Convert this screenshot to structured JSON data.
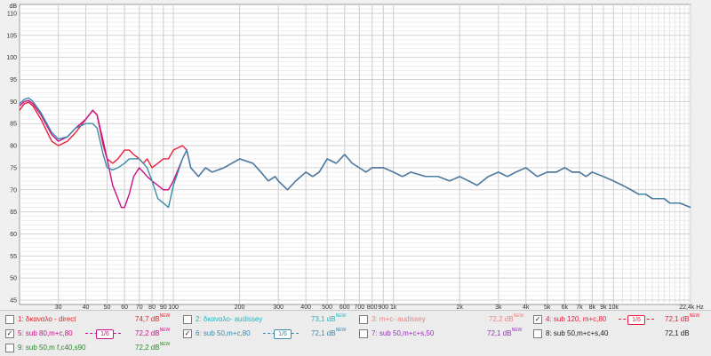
{
  "graph": {
    "y_unit": "dB",
    "x_unit": "Hz",
    "y_ticks": [
      "45",
      "50",
      "55",
      "60",
      "65",
      "70",
      "75",
      "80",
      "85",
      "90",
      "95",
      "100",
      "105",
      "110"
    ],
    "x_ticks": [
      {
        "f": 30,
        "label": "30"
      },
      {
        "f": 40,
        "label": "40"
      },
      {
        "f": 50,
        "label": "50"
      },
      {
        "f": 60,
        "label": "60"
      },
      {
        "f": 70,
        "label": "70"
      },
      {
        "f": 80,
        "label": "80"
      },
      {
        "f": 90,
        "label": "90"
      },
      {
        "f": 100,
        "label": "100"
      },
      {
        "f": 200,
        "label": "200"
      },
      {
        "f": 300,
        "label": "300"
      },
      {
        "f": 400,
        "label": "400"
      },
      {
        "f": 500,
        "label": "500"
      },
      {
        "f": 600,
        "label": "600"
      },
      {
        "f": 700,
        "label": "700"
      },
      {
        "f": 800,
        "label": "800"
      },
      {
        "f": 900,
        "label": "900"
      },
      {
        "f": 1000,
        "label": "1k"
      },
      {
        "f": 2000,
        "label": "2k"
      },
      {
        "f": 3000,
        "label": "3k"
      },
      {
        "f": 4000,
        "label": "4k"
      },
      {
        "f": 5000,
        "label": "5k"
      },
      {
        "f": 6000,
        "label": "6k"
      },
      {
        "f": 7000,
        "label": "7k"
      },
      {
        "f": 8000,
        "label": "8k"
      },
      {
        "f": 9000,
        "label": "9k"
      },
      {
        "f": 10000,
        "label": "10k"
      },
      {
        "f": 22400,
        "label": "22,4k Hz"
      }
    ],
    "x_range": [
      20,
      22400
    ],
    "y_range": [
      44,
      112
    ],
    "grid": true
  },
  "chart_data": {
    "type": "line",
    "xlabel": "Hz",
    "ylabel": "dB",
    "x_scale": "log",
    "xlim": [
      20,
      22400
    ],
    "ylim": [
      44,
      112
    ],
    "series": [
      {
        "name": "4: sub 120, m+c,80",
        "color": "#e8203c",
        "points": [
          [
            20,
            88
          ],
          [
            21,
            89.5
          ],
          [
            22,
            89.8
          ],
          [
            23,
            89
          ],
          [
            25,
            86
          ],
          [
            28,
            81
          ],
          [
            30,
            80
          ],
          [
            33,
            81
          ],
          [
            36,
            83
          ],
          [
            40,
            86
          ],
          [
            43,
            88
          ],
          [
            45,
            87
          ],
          [
            48,
            80
          ],
          [
            50,
            77
          ],
          [
            53,
            76
          ],
          [
            56,
            77
          ],
          [
            60,
            79
          ],
          [
            63,
            79
          ],
          [
            66,
            78
          ],
          [
            70,
            77
          ],
          [
            73,
            76
          ],
          [
            76,
            77
          ],
          [
            80,
            75
          ],
          [
            85,
            76
          ],
          [
            90,
            77
          ],
          [
            95,
            77
          ],
          [
            100,
            79
          ],
          [
            110,
            80
          ],
          [
            115,
            79
          ],
          [
            120,
            75
          ],
          [
            130,
            73
          ],
          [
            140,
            75
          ],
          [
            150,
            74
          ],
          [
            170,
            75
          ],
          [
            200,
            77
          ],
          [
            230,
            76
          ],
          [
            250,
            74
          ],
          [
            270,
            72
          ],
          [
            290,
            73
          ],
          [
            300,
            72
          ],
          [
            330,
            70
          ],
          [
            360,
            72
          ],
          [
            400,
            74
          ],
          [
            430,
            73
          ],
          [
            460,
            74
          ],
          [
            500,
            77
          ],
          [
            550,
            76
          ],
          [
            600,
            78
          ],
          [
            650,
            76
          ],
          [
            700,
            75
          ],
          [
            750,
            74
          ],
          [
            800,
            75
          ],
          [
            900,
            75
          ],
          [
            1000,
            74
          ],
          [
            1100,
            73
          ],
          [
            1200,
            74
          ],
          [
            1400,
            73
          ],
          [
            1600,
            73
          ],
          [
            1800,
            72
          ],
          [
            2000,
            73
          ],
          [
            2200,
            72
          ],
          [
            2400,
            71
          ],
          [
            2700,
            73
          ],
          [
            3000,
            74
          ],
          [
            3300,
            73
          ],
          [
            3600,
            74
          ],
          [
            4000,
            75
          ],
          [
            4500,
            73
          ],
          [
            5000,
            74
          ],
          [
            5500,
            74
          ],
          [
            6000,
            75
          ],
          [
            6500,
            74
          ],
          [
            7000,
            74
          ],
          [
            7500,
            73
          ],
          [
            8000,
            74
          ],
          [
            9000,
            73
          ],
          [
            10000,
            72
          ],
          [
            11000,
            71
          ],
          [
            12000,
            70
          ],
          [
            13000,
            69
          ],
          [
            14000,
            69
          ],
          [
            15000,
            68
          ],
          [
            16000,
            68
          ],
          [
            17000,
            68
          ],
          [
            18000,
            67
          ],
          [
            20000,
            67
          ],
          [
            22400,
            66
          ]
        ]
      },
      {
        "name": "5: sub 80,m+c,80",
        "color": "#cc1188",
        "points": [
          [
            20,
            89
          ],
          [
            21,
            90
          ],
          [
            22,
            90.2
          ],
          [
            23,
            89.5
          ],
          [
            25,
            87
          ],
          [
            28,
            82.5
          ],
          [
            30,
            81
          ],
          [
            33,
            82
          ],
          [
            36,
            84
          ],
          [
            40,
            86
          ],
          [
            43,
            88
          ],
          [
            45,
            87
          ],
          [
            48,
            81
          ],
          [
            50,
            77
          ],
          [
            53,
            71
          ],
          [
            56,
            68
          ],
          [
            58,
            66
          ],
          [
            60,
            66
          ],
          [
            63,
            69
          ],
          [
            66,
            73
          ],
          [
            70,
            75
          ],
          [
            73,
            74
          ],
          [
            76,
            73
          ],
          [
            80,
            72
          ],
          [
            85,
            71
          ],
          [
            90,
            70
          ],
          [
            95,
            70
          ],
          [
            100,
            72
          ],
          [
            110,
            77
          ],
          [
            115,
            79
          ],
          [
            120,
            75
          ],
          [
            130,
            73
          ],
          [
            140,
            75
          ],
          [
            150,
            74
          ],
          [
            170,
            75
          ],
          [
            200,
            77
          ],
          [
            230,
            76
          ],
          [
            250,
            74
          ],
          [
            270,
            72
          ],
          [
            290,
            73
          ],
          [
            300,
            72
          ],
          [
            330,
            70
          ],
          [
            360,
            72
          ],
          [
            400,
            74
          ],
          [
            430,
            73
          ],
          [
            460,
            74
          ],
          [
            500,
            77
          ],
          [
            550,
            76
          ],
          [
            600,
            78
          ],
          [
            650,
            76
          ],
          [
            700,
            75
          ],
          [
            750,
            74
          ],
          [
            800,
            75
          ],
          [
            900,
            75
          ],
          [
            1000,
            74
          ],
          [
            1100,
            73
          ],
          [
            1200,
            74
          ],
          [
            1400,
            73
          ],
          [
            1600,
            73
          ],
          [
            1800,
            72
          ],
          [
            2000,
            73
          ],
          [
            2200,
            72
          ],
          [
            2400,
            71
          ],
          [
            2700,
            73
          ],
          [
            3000,
            74
          ],
          [
            3300,
            73
          ],
          [
            3600,
            74
          ],
          [
            4000,
            75
          ],
          [
            4500,
            73
          ],
          [
            5000,
            74
          ],
          [
            5500,
            74
          ],
          [
            6000,
            75
          ],
          [
            6500,
            74
          ],
          [
            7000,
            74
          ],
          [
            7500,
            73
          ],
          [
            8000,
            74
          ],
          [
            9000,
            73
          ],
          [
            10000,
            72
          ],
          [
            11000,
            71
          ],
          [
            12000,
            70
          ],
          [
            13000,
            69
          ],
          [
            14000,
            69
          ],
          [
            15000,
            68
          ],
          [
            16000,
            68
          ],
          [
            17000,
            68
          ],
          [
            18000,
            67
          ],
          [
            20000,
            67
          ],
          [
            22400,
            66
          ]
        ]
      },
      {
        "name": "6: sub 50,m+c,80",
        "color": "#3a8aa8",
        "points": [
          [
            20,
            89.5
          ],
          [
            21,
            90.5
          ],
          [
            22,
            90.8
          ],
          [
            23,
            90
          ],
          [
            25,
            87.5
          ],
          [
            28,
            83
          ],
          [
            30,
            81.5
          ],
          [
            33,
            82
          ],
          [
            36,
            84
          ],
          [
            40,
            85
          ],
          [
            43,
            85
          ],
          [
            45,
            84
          ],
          [
            48,
            78
          ],
          [
            50,
            75
          ],
          [
            53,
            74.5
          ],
          [
            56,
            75
          ],
          [
            60,
            76
          ],
          [
            63,
            77
          ],
          [
            66,
            77
          ],
          [
            70,
            77
          ],
          [
            73,
            76
          ],
          [
            76,
            75
          ],
          [
            80,
            72
          ],
          [
            85,
            68
          ],
          [
            90,
            67
          ],
          [
            95,
            66
          ],
          [
            100,
            71
          ],
          [
            110,
            77
          ],
          [
            115,
            79
          ],
          [
            120,
            75
          ],
          [
            130,
            73
          ],
          [
            140,
            75
          ],
          [
            150,
            74
          ],
          [
            170,
            75
          ],
          [
            200,
            77
          ],
          [
            230,
            76
          ],
          [
            250,
            74
          ],
          [
            270,
            72
          ],
          [
            290,
            73
          ],
          [
            300,
            72
          ],
          [
            330,
            70
          ],
          [
            360,
            72
          ],
          [
            400,
            74
          ],
          [
            430,
            73
          ],
          [
            460,
            74
          ],
          [
            500,
            77
          ],
          [
            550,
            76
          ],
          [
            600,
            78
          ],
          [
            650,
            76
          ],
          [
            700,
            75
          ],
          [
            750,
            74
          ],
          [
            800,
            75
          ],
          [
            900,
            75
          ],
          [
            1000,
            74
          ],
          [
            1100,
            73
          ],
          [
            1200,
            74
          ],
          [
            1400,
            73
          ],
          [
            1600,
            73
          ],
          [
            1800,
            72
          ],
          [
            2000,
            73
          ],
          [
            2200,
            72
          ],
          [
            2400,
            71
          ],
          [
            2700,
            73
          ],
          [
            3000,
            74
          ],
          [
            3300,
            73
          ],
          [
            3600,
            74
          ],
          [
            4000,
            75
          ],
          [
            4500,
            73
          ],
          [
            5000,
            74
          ],
          [
            5500,
            74
          ],
          [
            6000,
            75
          ],
          [
            6500,
            74
          ],
          [
            7000,
            74
          ],
          [
            7500,
            73
          ],
          [
            8000,
            74
          ],
          [
            9000,
            73
          ],
          [
            10000,
            72
          ],
          [
            11000,
            71
          ],
          [
            12000,
            70
          ],
          [
            13000,
            69
          ],
          [
            14000,
            69
          ],
          [
            15000,
            68
          ],
          [
            16000,
            68
          ],
          [
            17000,
            68
          ],
          [
            18000,
            67
          ],
          [
            20000,
            67
          ],
          [
            22400,
            66
          ]
        ]
      }
    ]
  },
  "legend": {
    "items": [
      {
        "name": "1: δκαναλο - direct",
        "db": "74,7 dB",
        "sup": "NEW",
        "color": "#e0282a",
        "checked": false
      },
      {
        "name": "2: δκαναλο- audissey",
        "db": "73,1 dB",
        "sup": "NEW",
        "color": "#22b8c4",
        "checked": false
      },
      {
        "name": "3: m+c- audissey",
        "db": "72,2 dB",
        "sup": "NEW",
        "color": "#f08080",
        "checked": false
      },
      {
        "name": "4: sub 120, m+c,80",
        "db": "72,1 dB",
        "sup": "NEW",
        "color": "#e8203c",
        "checked": true,
        "smooth": "1/6"
      },
      {
        "name": "5: sub 80,m+c,80",
        "db": "72,2 dB",
        "sup": "NEW",
        "color": "#cc1188",
        "checked": true,
        "smooth": "1/6"
      },
      {
        "name": "6: sub 50,m+c,80",
        "db": "72,1 dB",
        "sup": "NEW",
        "color": "#3a8aa8",
        "checked": true,
        "smooth": "1/6"
      },
      {
        "name": "7: sub 50,m+c+s,50",
        "db": "72,1 dB",
        "sup": "NEW",
        "color": "#9933bb",
        "checked": false
      },
      {
        "name": "8: sub 50,m+c+s,40",
        "db": "72,1 dB",
        "sup": "",
        "color": "#222222",
        "checked": false
      },
      {
        "name": "9: sub 50,m f,c40,s90",
        "db": "72,2 dB",
        "sup": "NEW",
        "color": "#2a8a2a",
        "checked": false
      }
    ],
    "check_mark": "✓"
  }
}
